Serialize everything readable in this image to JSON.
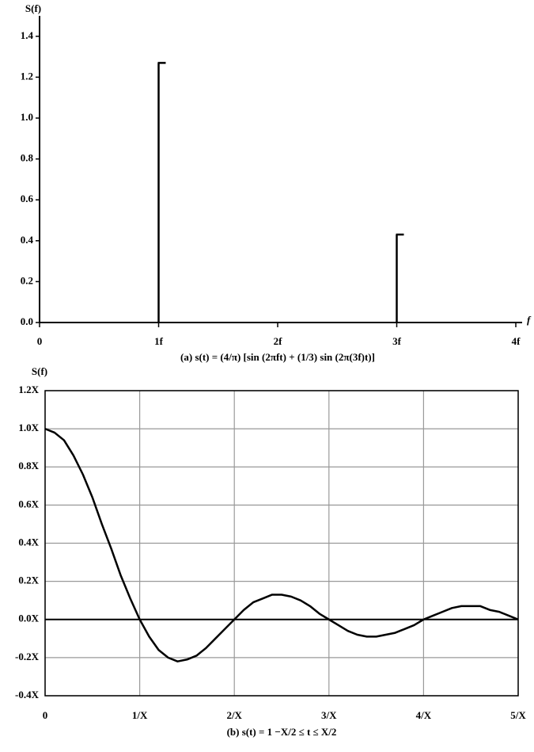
{
  "chart_data": [
    {
      "type": "stem",
      "y_label": "S(f)",
      "x_label": "f",
      "caption": "(a) s(t) = (4/π) [sin (2πft) + (1/3) sin (2π(3f)t)]",
      "x": [
        1,
        3
      ],
      "values": [
        1.27,
        0.43
      ],
      "color": "#000000",
      "xlim": [
        0,
        4
      ],
      "xticks": [
        0,
        {
          "value": 1,
          "label": "1f"
        },
        {
          "value": 2,
          "label": "2f"
        },
        {
          "value": 3,
          "label": "3f"
        },
        {
          "value": 4,
          "label": "4f"
        }
      ],
      "ylim": [
        0,
        1.5
      ],
      "yticks": [
        {
          "value": 0,
          "label": "0.0"
        },
        0.2,
        0.4,
        0.6,
        0.8,
        {
          "value": 1,
          "label": "1.0"
        },
        1.2,
        1.4
      ],
      "grid": false
    },
    {
      "type": "line",
      "y_label": "S(f)",
      "caption": "(b) s(t) = 1    −X/2 ≤ t ≤ X/2",
      "x": [
        0,
        0.1,
        0.2,
        0.3,
        0.4,
        0.5,
        0.6,
        0.7,
        0.8,
        0.9,
        1,
        1.1,
        1.2,
        1.3,
        1.4,
        1.5,
        1.6,
        1.7,
        1.8,
        1.9,
        2,
        2.1,
        2.2,
        2.3,
        2.4,
        2.5,
        2.6,
        2.7,
        2.8,
        2.9,
        3,
        3.1,
        3.2,
        3.3,
        3.4,
        3.5,
        3.6,
        3.7,
        3.8,
        3.9,
        4,
        4.1,
        4.2,
        4.3,
        4.4,
        4.5,
        4.6,
        4.7,
        4.8,
        4.9,
        5
      ],
      "values": [
        1,
        0.98,
        0.94,
        0.86,
        0.76,
        0.64,
        0.5,
        0.37,
        0.23,
        0.11,
        0,
        -0.09,
        -0.16,
        -0.2,
        -0.22,
        -0.21,
        -0.19,
        -0.15,
        -0.1,
        -0.05,
        0,
        0.05,
        0.09,
        0.11,
        0.13,
        0.13,
        0.12,
        0.1,
        0.07,
        0.03,
        0,
        -0.03,
        -0.06,
        -0.08,
        -0.09,
        -0.09,
        -0.08,
        -0.07,
        -0.05,
        -0.03,
        0,
        0.02,
        0.04,
        0.06,
        0.07,
        0.07,
        0.07,
        0.05,
        0.04,
        0.02,
        0
      ],
      "color": "#000000",
      "xlim": [
        0,
        5
      ],
      "xticks": [
        0,
        {
          "value": 1,
          "label": "1/X"
        },
        {
          "value": 2,
          "label": "2/X"
        },
        {
          "value": 3,
          "label": "3/X"
        },
        {
          "value": 4,
          "label": "4/X"
        },
        {
          "value": 5,
          "label": "5/X"
        }
      ],
      "ylim": [
        -0.4,
        1.2
      ],
      "yticks": [
        {
          "value": -0.4,
          "label": "-0.4X"
        },
        {
          "value": -0.2,
          "label": "-0.2X"
        },
        {
          "value": 0,
          "label": "0.0X"
        },
        {
          "value": 0.2,
          "label": "0.2X"
        },
        {
          "value": 0.4,
          "label": "0.4X"
        },
        {
          "value": 0.6,
          "label": "0.6X"
        },
        {
          "value": 0.8,
          "label": "0.8X"
        },
        {
          "value": 1,
          "label": "1.0X"
        },
        {
          "value": 1.2,
          "label": "1.2X"
        }
      ],
      "grid": true
    }
  ]
}
